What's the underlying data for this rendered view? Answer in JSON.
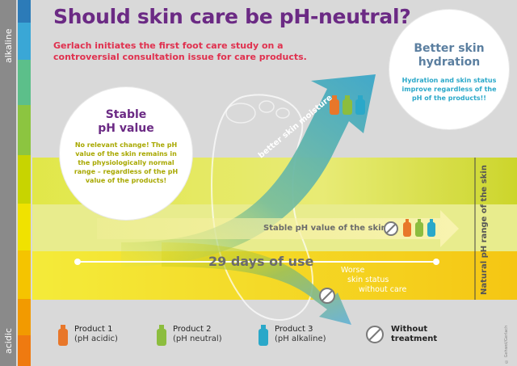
{
  "title": "Should skin care be pH-neutral?",
  "subtitle": "Gerlach initiates the first foot care study on a controversial consultation issue for care products.",
  "scale": {
    "top_label": "alkaline",
    "bottom_label": "acidic"
  },
  "hydration_circle": {
    "heading_line1": "Better skin",
    "heading_line2": "hydration",
    "body": "Hydration and skin status improve regardless of the pH of the products!!"
  },
  "stable_circle": {
    "heading_line1": "Stable",
    "heading_line2": "pH value",
    "body": "No relevant change! The pH value of the skin remains in the physiologically normal range – regardless of the pH value of the products!"
  },
  "arrows": {
    "moisture_label": "better skin moisture",
    "stable_label": "Stable pH value of the skin",
    "worse_label_line1": "Worse",
    "worse_label_line2": "skin status",
    "worse_label_line3": "without care"
  },
  "timeline": {
    "label": "29 days of use"
  },
  "natural_range_label": "Natural pH range of the skin",
  "legend": {
    "items": [
      {
        "name": "Product 1",
        "sub": "(pH acidic)",
        "color": "#e8772a"
      },
      {
        "name": "Product 2",
        "sub": "(pH neutral)",
        "color": "#8cbd3e"
      },
      {
        "name": "Product 3",
        "sub": "(pH alkaline)",
        "color": "#2aa8c9"
      },
      {
        "name": "Without",
        "sub": "treatment",
        "color": "#7a7a7a"
      }
    ]
  },
  "colors": {
    "purple": "#6b2a84",
    "red": "#e0304e",
    "blue_heading": "#5b7fa0",
    "teal": "#2aa8c9",
    "green_band": "#c9d400",
    "yellow_band": "#f2e400"
  },
  "copyright": "© Gehwol/Gerlach"
}
